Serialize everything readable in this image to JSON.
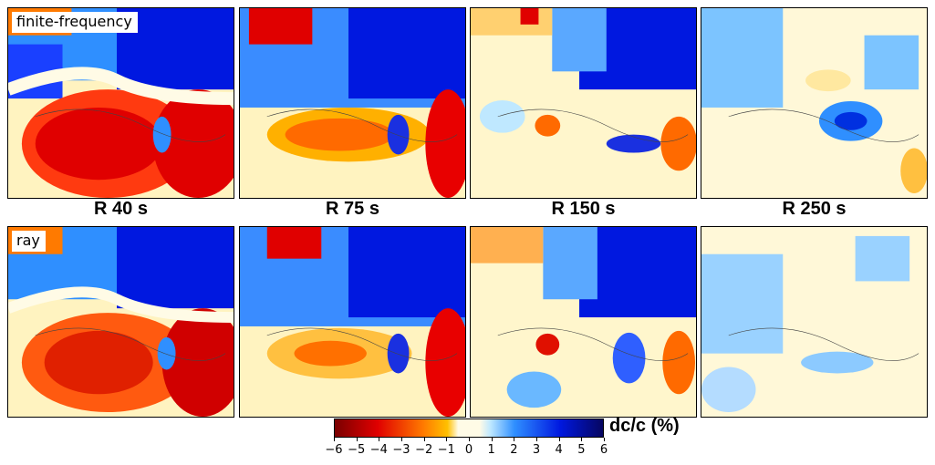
{
  "rows": [
    {
      "method": "finite-frequency",
      "panels": [
        {
          "period": "R 40 s"
        },
        {
          "period": "R 75 s"
        },
        {
          "period": "R 150 s"
        },
        {
          "period": "R 250 s"
        }
      ]
    },
    {
      "method": "ray",
      "panels": [
        {
          "period": "R 40 s"
        },
        {
          "period": "R 75 s"
        },
        {
          "period": "R 150 s"
        },
        {
          "period": "R 250 s"
        }
      ]
    }
  ],
  "colorbar": {
    "label": "dc/c (%)",
    "ticks": [
      "−6",
      "−5",
      "−4",
      "−3",
      "−2",
      "−1",
      "0",
      "1",
      "2",
      "3",
      "4",
      "5",
      "6"
    ],
    "range": [
      -6,
      6
    ],
    "colors": {
      "neg6": "#7a0000",
      "neg4": "#e00000",
      "neg2": "#ff7a00",
      "neg1": "#ffc000",
      "zero": "#fffbe6",
      "pos1": "#bfe8ff",
      "pos2": "#2f8fff",
      "pos4": "#0018e0",
      "pos6": "#060660"
    }
  }
}
